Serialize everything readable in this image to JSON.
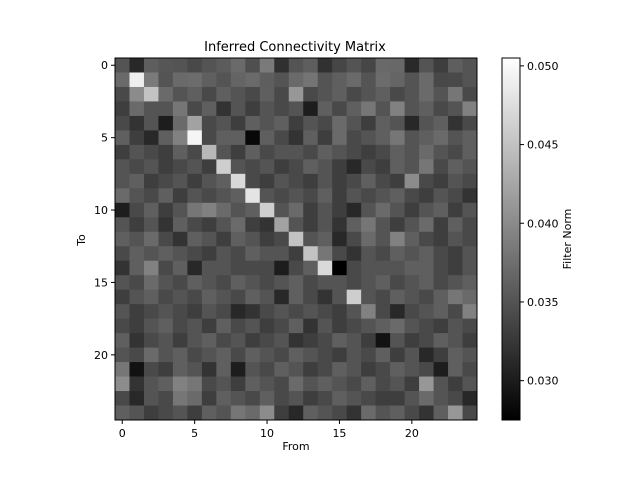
{
  "chart_data": {
    "type": "heatmap",
    "title": "Inferred Connectivity Matrix",
    "xlabel": "From",
    "ylabel": "To",
    "colorbar_label": "Filter Norm",
    "colormap": "gray",
    "rows": 25,
    "cols": 25,
    "x_ticks": [
      0,
      5,
      10,
      15,
      20
    ],
    "y_ticks": [
      0,
      5,
      10,
      15,
      20
    ],
    "vmin": 0.0275,
    "vmax": 0.0505,
    "colorbar_ticks": [
      0.03,
      0.035,
      0.04,
      0.045,
      0.05
    ],
    "colorbar_tick_labels": [
      "0.030",
      "0.035",
      "0.040",
      "0.045",
      "0.050"
    ],
    "values": [
      [
        0.0351,
        0.0311,
        0.036,
        0.0353,
        0.0351,
        0.0341,
        0.0351,
        0.0358,
        0.0371,
        0.0346,
        0.0385,
        0.0318,
        0.0351,
        0.036,
        0.0319,
        0.0338,
        0.0351,
        0.0338,
        0.037,
        0.0369,
        0.0312,
        0.0351,
        0.0331,
        0.036,
        0.0351
      ],
      [
        0.0371,
        0.049,
        0.0385,
        0.0351,
        0.0371,
        0.0372,
        0.0361,
        0.0351,
        0.0365,
        0.0371,
        0.036,
        0.0351,
        0.0371,
        0.038,
        0.0351,
        0.0361,
        0.0371,
        0.0351,
        0.0372,
        0.0366,
        0.0351,
        0.0371,
        0.034,
        0.0341,
        0.0351
      ],
      [
        0.0341,
        0.04,
        0.0451,
        0.0371,
        0.0351,
        0.0361,
        0.0341,
        0.0361,
        0.0351,
        0.0341,
        0.0361,
        0.0341,
        0.0411,
        0.0341,
        0.0351,
        0.0361,
        0.0341,
        0.0351,
        0.0361,
        0.0341,
        0.0351,
        0.0371,
        0.0351,
        0.0381,
        0.0341
      ],
      [
        0.0331,
        0.0371,
        0.0351,
        0.0351,
        0.0381,
        0.0341,
        0.0361,
        0.0321,
        0.0351,
        0.0331,
        0.0351,
        0.0341,
        0.0351,
        0.0301,
        0.0361,
        0.0341,
        0.0361,
        0.0381,
        0.0351,
        0.0391,
        0.0351,
        0.0361,
        0.0341,
        0.0351,
        0.0391
      ],
      [
        0.0341,
        0.0321,
        0.0351,
        0.0301,
        0.0371,
        0.0421,
        0.0341,
        0.0351,
        0.0331,
        0.0361,
        0.0351,
        0.0361,
        0.0331,
        0.0351,
        0.0341,
        0.0371,
        0.0351,
        0.0331,
        0.0361,
        0.0351,
        0.0311,
        0.0351,
        0.0361,
        0.0321,
        0.0341
      ],
      [
        0.0361,
        0.0331,
        0.0311,
        0.0361,
        0.0391,
        0.0496,
        0.0341,
        0.0361,
        0.0361,
        0.0282,
        0.0361,
        0.0341,
        0.0321,
        0.0361,
        0.0331,
        0.0371,
        0.0341,
        0.0351,
        0.0361,
        0.0381,
        0.0351,
        0.0361,
        0.0371,
        0.0351,
        0.0361
      ],
      [
        0.0331,
        0.0351,
        0.0341,
        0.0331,
        0.0361,
        0.0341,
        0.0441,
        0.0351,
        0.0331,
        0.0361,
        0.0341,
        0.0351,
        0.0351,
        0.0341,
        0.0361,
        0.0351,
        0.0341,
        0.0331,
        0.0341,
        0.0361,
        0.0351,
        0.0371,
        0.0351,
        0.0341,
        0.0361
      ],
      [
        0.0351,
        0.0341,
        0.0351,
        0.0331,
        0.0341,
        0.0351,
        0.0331,
        0.0461,
        0.0351,
        0.0341,
        0.0351,
        0.0331,
        0.0341,
        0.0361,
        0.0351,
        0.0331,
        0.0311,
        0.0341,
        0.0331,
        0.0361,
        0.0351,
        0.0381,
        0.0341,
        0.0361,
        0.0351
      ],
      [
        0.0351,
        0.0361,
        0.0331,
        0.0341,
        0.0351,
        0.0331,
        0.0351,
        0.0361,
        0.0471,
        0.0341,
        0.0331,
        0.0351,
        0.0341,
        0.0331,
        0.0351,
        0.0331,
        0.0341,
        0.0361,
        0.0341,
        0.0331,
        0.0401,
        0.0341,
        0.0331,
        0.0351,
        0.0341
      ],
      [
        0.0371,
        0.0351,
        0.0341,
        0.0361,
        0.0331,
        0.0351,
        0.0341,
        0.0351,
        0.0361,
        0.0481,
        0.0351,
        0.0341,
        0.0351,
        0.0341,
        0.0361,
        0.0331,
        0.0351,
        0.0341,
        0.0351,
        0.0361,
        0.0341,
        0.0331,
        0.0351,
        0.0341,
        0.0321
      ],
      [
        0.0301,
        0.0341,
        0.0361,
        0.0331,
        0.0351,
        0.0381,
        0.0391,
        0.0371,
        0.0351,
        0.0361,
        0.0461,
        0.0351,
        0.0371,
        0.0331,
        0.0351,
        0.0331,
        0.0311,
        0.0351,
        0.0371,
        0.0351,
        0.0331,
        0.0351,
        0.0361,
        0.0331,
        0.0351
      ],
      [
        0.0351,
        0.0331,
        0.0351,
        0.0321,
        0.0361,
        0.0341,
        0.0331,
        0.0351,
        0.0371,
        0.0331,
        0.0321,
        0.0421,
        0.0351,
        0.0331,
        0.0351,
        0.0321,
        0.0361,
        0.0381,
        0.0351,
        0.0331,
        0.0351,
        0.0371,
        0.0331,
        0.0361,
        0.0341
      ],
      [
        0.0361,
        0.0351,
        0.0371,
        0.0341,
        0.0321,
        0.0361,
        0.0351,
        0.0331,
        0.0361,
        0.0351,
        0.0331,
        0.0341,
        0.0451,
        0.0351,
        0.0361,
        0.0311,
        0.0341,
        0.0371,
        0.0351,
        0.0391,
        0.0361,
        0.0341,
        0.0331,
        0.0351,
        0.0341
      ],
      [
        0.0341,
        0.0361,
        0.0351,
        0.0361,
        0.0351,
        0.0341,
        0.0331,
        0.0351,
        0.0341,
        0.0361,
        0.0351,
        0.0351,
        0.0331,
        0.0451,
        0.0381,
        0.0341,
        0.0321,
        0.0351,
        0.0341,
        0.0361,
        0.0351,
        0.0361,
        0.0341,
        0.0331,
        0.0351
      ],
      [
        0.0321,
        0.0361,
        0.0391,
        0.0341,
        0.0361,
        0.0311,
        0.0351,
        0.0351,
        0.0341,
        0.0341,
        0.0341,
        0.0301,
        0.0341,
        0.0361,
        0.0471,
        0.0275,
        0.0341,
        0.0351,
        0.0351,
        0.0351,
        0.0361,
        0.0361,
        0.0341,
        0.0331,
        0.0351
      ],
      [
        0.0351,
        0.0341,
        0.0371,
        0.0351,
        0.0341,
        0.0361,
        0.0351,
        0.0341,
        0.0361,
        0.0351,
        0.0341,
        0.0351,
        0.0361,
        0.0341,
        0.0351,
        0.0351,
        0.0341,
        0.0351,
        0.0361,
        0.0341,
        0.0351,
        0.0361,
        0.0341,
        0.0351,
        0.0361
      ],
      [
        0.0331,
        0.0351,
        0.0361,
        0.0341,
        0.0351,
        0.0341,
        0.0361,
        0.0351,
        0.0341,
        0.0361,
        0.0351,
        0.0311,
        0.0361,
        0.0341,
        0.0321,
        0.0351,
        0.0461,
        0.0351,
        0.0341,
        0.0361,
        0.0351,
        0.0341,
        0.0361,
        0.0381,
        0.0371
      ],
      [
        0.0351,
        0.0331,
        0.0341,
        0.0351,
        0.0341,
        0.0331,
        0.0351,
        0.0341,
        0.0311,
        0.0321,
        0.0341,
        0.0351,
        0.0341,
        0.0351,
        0.0341,
        0.0331,
        0.0351,
        0.0391,
        0.0341,
        0.0311,
        0.0341,
        0.0351,
        0.0361,
        0.0341,
        0.0391
      ],
      [
        0.0341,
        0.0331,
        0.0351,
        0.0361,
        0.0341,
        0.0351,
        0.0331,
        0.0361,
        0.0341,
        0.0351,
        0.0331,
        0.0341,
        0.0361,
        0.0321,
        0.0351,
        0.0331,
        0.0341,
        0.0351,
        0.0361,
        0.0371,
        0.0351,
        0.0341,
        0.0331,
        0.0351,
        0.0341
      ],
      [
        0.0361,
        0.0321,
        0.0341,
        0.0351,
        0.0331,
        0.0351,
        0.0361,
        0.0341,
        0.0351,
        0.0331,
        0.0341,
        0.0351,
        0.0321,
        0.0331,
        0.0341,
        0.0361,
        0.0351,
        0.0331,
        0.0291,
        0.0351,
        0.0331,
        0.0341,
        0.0361,
        0.0351,
        0.0331
      ],
      [
        0.0351,
        0.0341,
        0.0371,
        0.0351,
        0.0361,
        0.0341,
        0.0351,
        0.0361,
        0.0341,
        0.0361,
        0.0351,
        0.0341,
        0.0361,
        0.0351,
        0.0341,
        0.0331,
        0.0351,
        0.0341,
        0.0361,
        0.0331,
        0.0351,
        0.0311,
        0.0331,
        0.0361,
        0.0351
      ],
      [
        0.0381,
        0.0291,
        0.0341,
        0.0331,
        0.0361,
        0.0351,
        0.0321,
        0.0361,
        0.0301,
        0.0351,
        0.0341,
        0.0361,
        0.0351,
        0.0331,
        0.0341,
        0.0361,
        0.0351,
        0.0331,
        0.0341,
        0.0361,
        0.0351,
        0.0341,
        0.0301,
        0.0361,
        0.0341
      ],
      [
        0.0401,
        0.0321,
        0.0351,
        0.0361,
        0.0391,
        0.0381,
        0.0341,
        0.0351,
        0.0331,
        0.0361,
        0.0351,
        0.0341,
        0.0371,
        0.0351,
        0.0361,
        0.0351,
        0.0341,
        0.0361,
        0.0341,
        0.0351,
        0.0331,
        0.0411,
        0.0351,
        0.0331,
        0.0351
      ],
      [
        0.0341,
        0.0311,
        0.0351,
        0.0341,
        0.0381,
        0.0371,
        0.0331,
        0.0361,
        0.0351,
        0.0341,
        0.0361,
        0.0341,
        0.0351,
        0.0331,
        0.0341,
        0.0361,
        0.0351,
        0.0341,
        0.0331,
        0.0331,
        0.0351,
        0.0371,
        0.0351,
        0.0341,
        0.0311
      ],
      [
        0.0361,
        0.0351,
        0.0331,
        0.0341,
        0.0351,
        0.0331,
        0.0361,
        0.0351,
        0.0381,
        0.0371,
        0.0401,
        0.0331,
        0.0311,
        0.0361,
        0.0351,
        0.0341,
        0.0321,
        0.0371,
        0.0351,
        0.0361,
        0.0341,
        0.0321,
        0.0361,
        0.0411,
        0.0341
      ]
    ]
  }
}
